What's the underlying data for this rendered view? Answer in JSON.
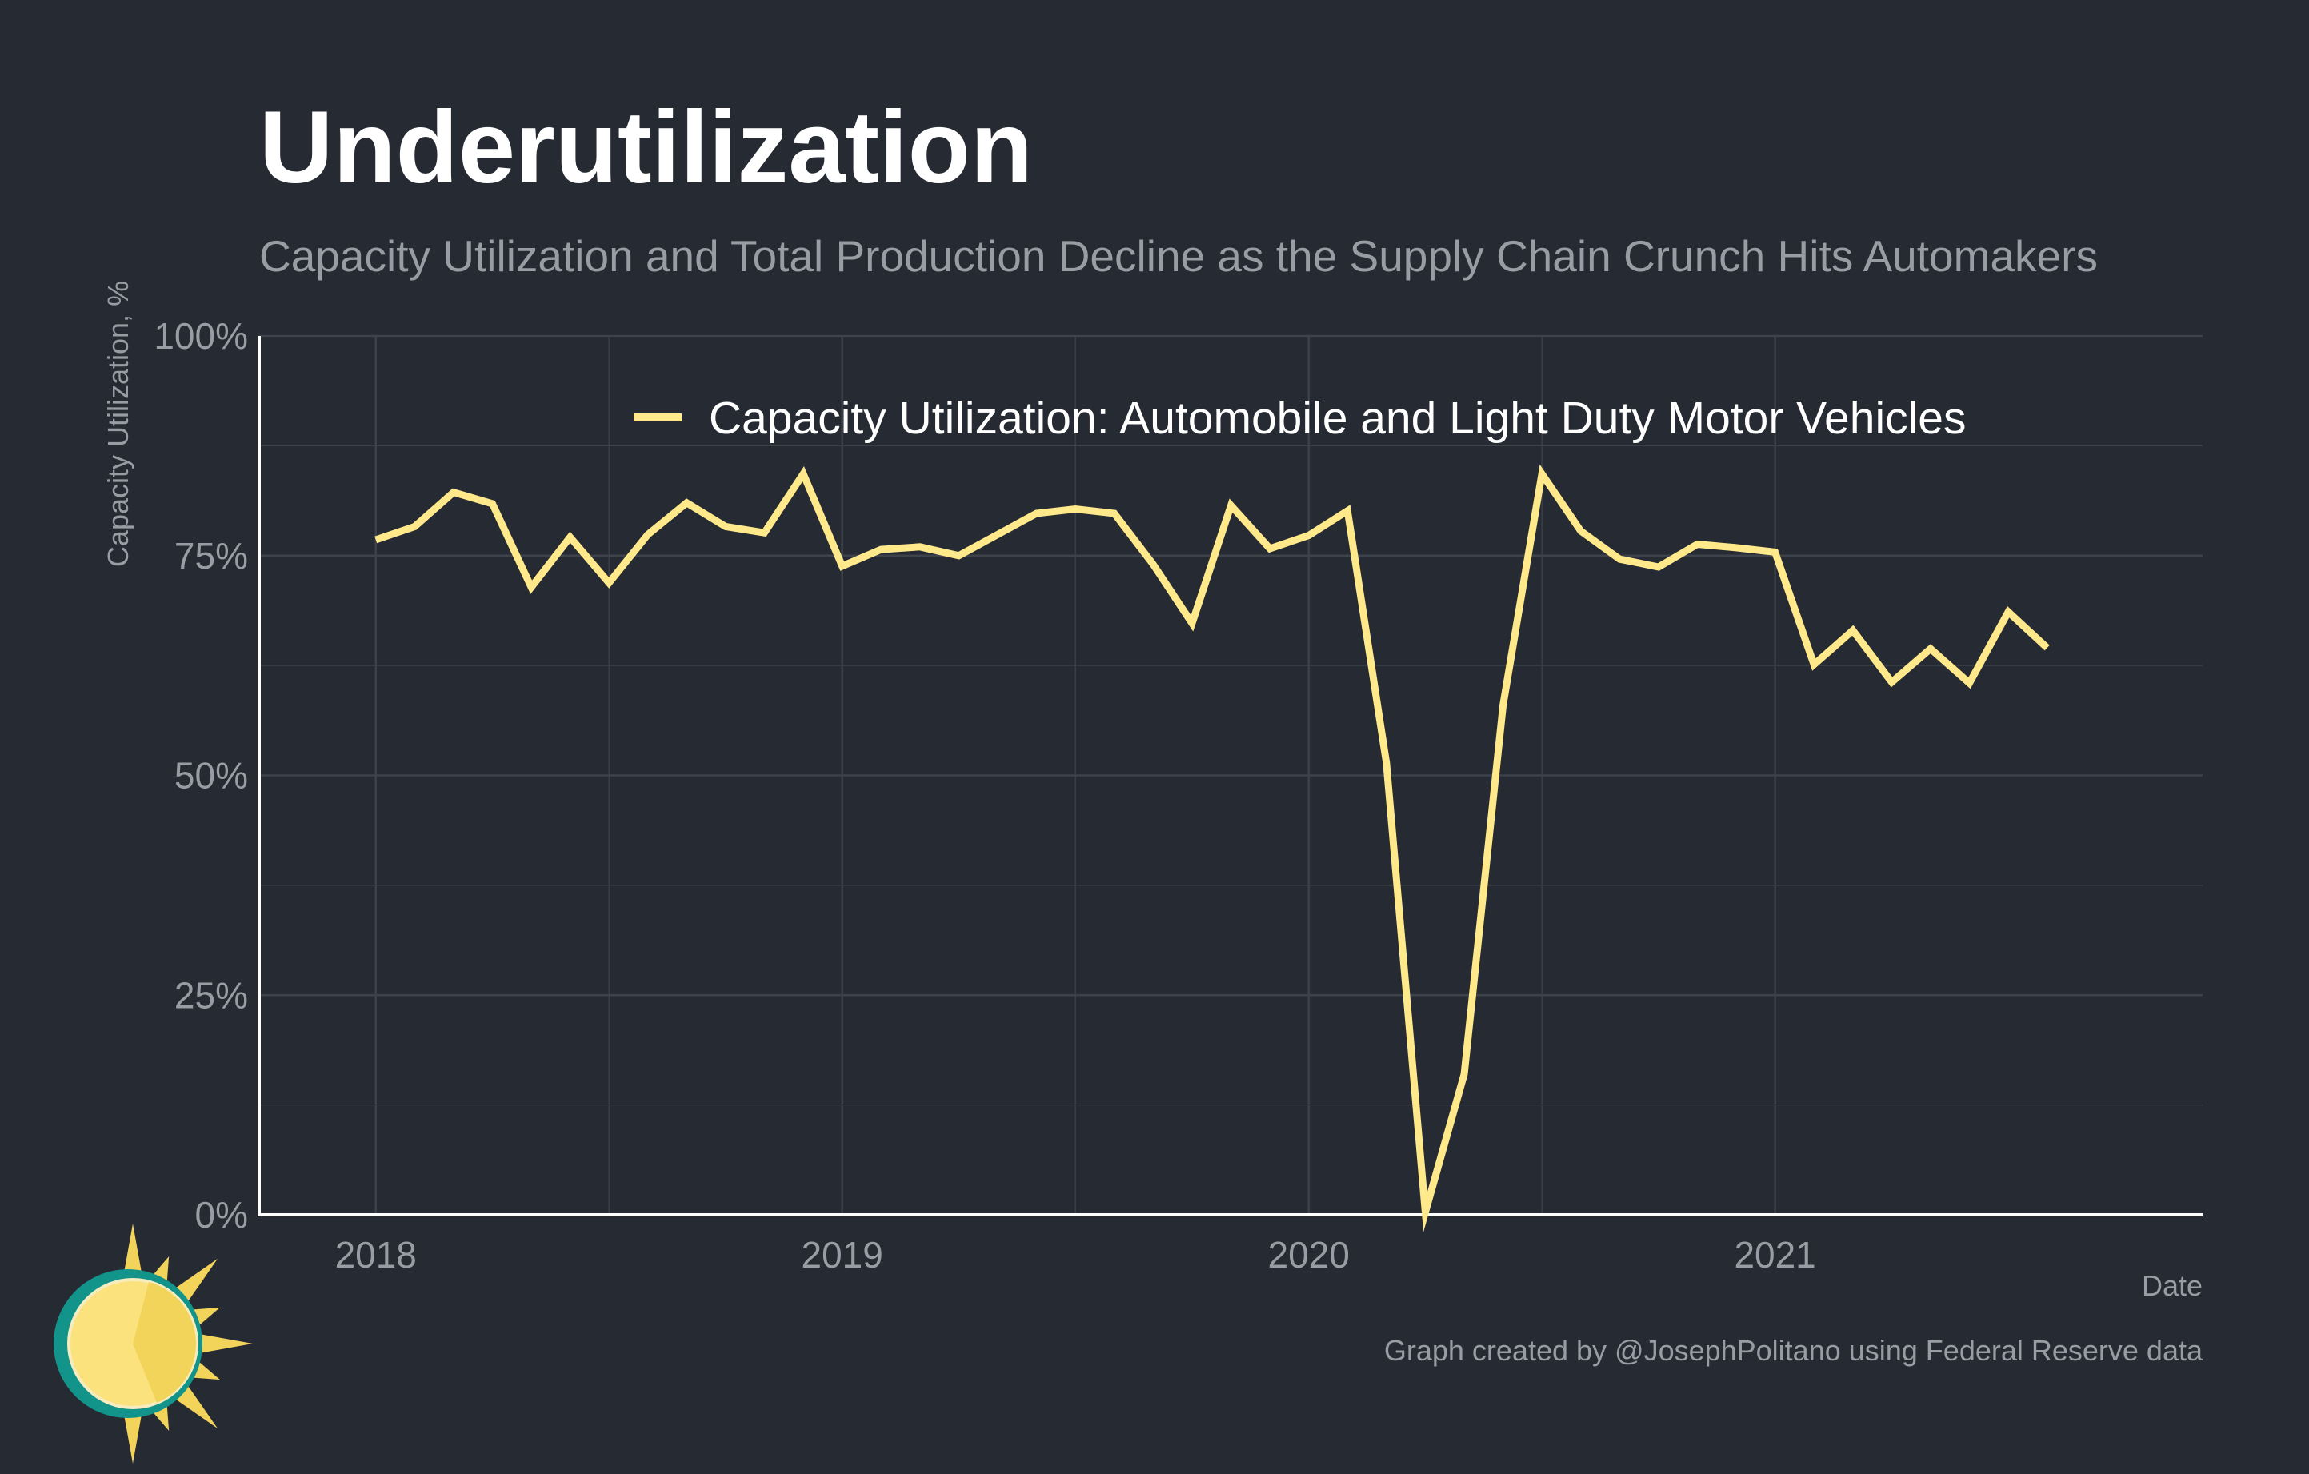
{
  "colors": {
    "background": "#252a33",
    "series": "#ffe98a",
    "grid": "#3d424b",
    "axis": "#ffffff",
    "muted_text": "#9a9ca3",
    "title": "#ffffff",
    "logo_teal": "#12948a",
    "logo_sun": "#fbe27d",
    "logo_sun_dark": "#f3d45a"
  },
  "icons": {
    "logo": "sun-logo-icon"
  },
  "chart_data": {
    "type": "line",
    "title": "Underutilization",
    "subtitle": "Capacity Utilization and Total Production Decline as the Supply Chain Crunch Hits Automakers",
    "xlabel": "Date",
    "ylabel": "Capacity Utilization, %",
    "caption": "Graph created by @JosephPolitano using Federal Reserve data",
    "legend_position": "top-center",
    "grid": true,
    "xlim": [
      "2017-10",
      "2021-12"
    ],
    "ylim": [
      0,
      100
    ],
    "x_ticks": [
      "2018-01",
      "2019-01",
      "2020-01",
      "2021-01"
    ],
    "x_tick_labels": [
      "2018",
      "2019",
      "2020",
      "2021"
    ],
    "y_ticks": [
      0,
      25,
      50,
      75,
      100
    ],
    "y_tick_labels": [
      "0%",
      "25%",
      "50%",
      "75%",
      "100%"
    ],
    "series": [
      {
        "name": "Capacity Utilization: Automobile and Light Duty Motor Vehicles",
        "color": "#ffe98a",
        "x": [
          "2018-01",
          "2018-02",
          "2018-03",
          "2018-04",
          "2018-05",
          "2018-06",
          "2018-07",
          "2018-08",
          "2018-09",
          "2018-10",
          "2018-11",
          "2018-12",
          "2019-01",
          "2019-02",
          "2019-03",
          "2019-04",
          "2019-05",
          "2019-06",
          "2019-07",
          "2019-08",
          "2019-09",
          "2019-10",
          "2019-11",
          "2019-12",
          "2020-01",
          "2020-02",
          "2020-03",
          "2020-04",
          "2020-05",
          "2020-06",
          "2020-07",
          "2020-08",
          "2020-09",
          "2020-10",
          "2020-11",
          "2020-12",
          "2021-01",
          "2021-02",
          "2021-03",
          "2021-04",
          "2021-05",
          "2021-06",
          "2021-07",
          "2021-08"
        ],
        "values": [
          76.8,
          78.3,
          82.2,
          80.9,
          71.4,
          77.1,
          71.9,
          77.4,
          81.0,
          78.3,
          77.6,
          84.3,
          73.8,
          75.7,
          76.0,
          75.0,
          77.4,
          79.8,
          80.3,
          79.8,
          74.0,
          67.3,
          80.7,
          75.8,
          77.3,
          80.1,
          51.4,
          0.3,
          16.0,
          58.0,
          84.3,
          77.8,
          74.6,
          73.7,
          76.3,
          75.9,
          75.4,
          62.6,
          66.5,
          60.6,
          64.4,
          60.5,
          68.6,
          64.5
        ]
      }
    ]
  }
}
